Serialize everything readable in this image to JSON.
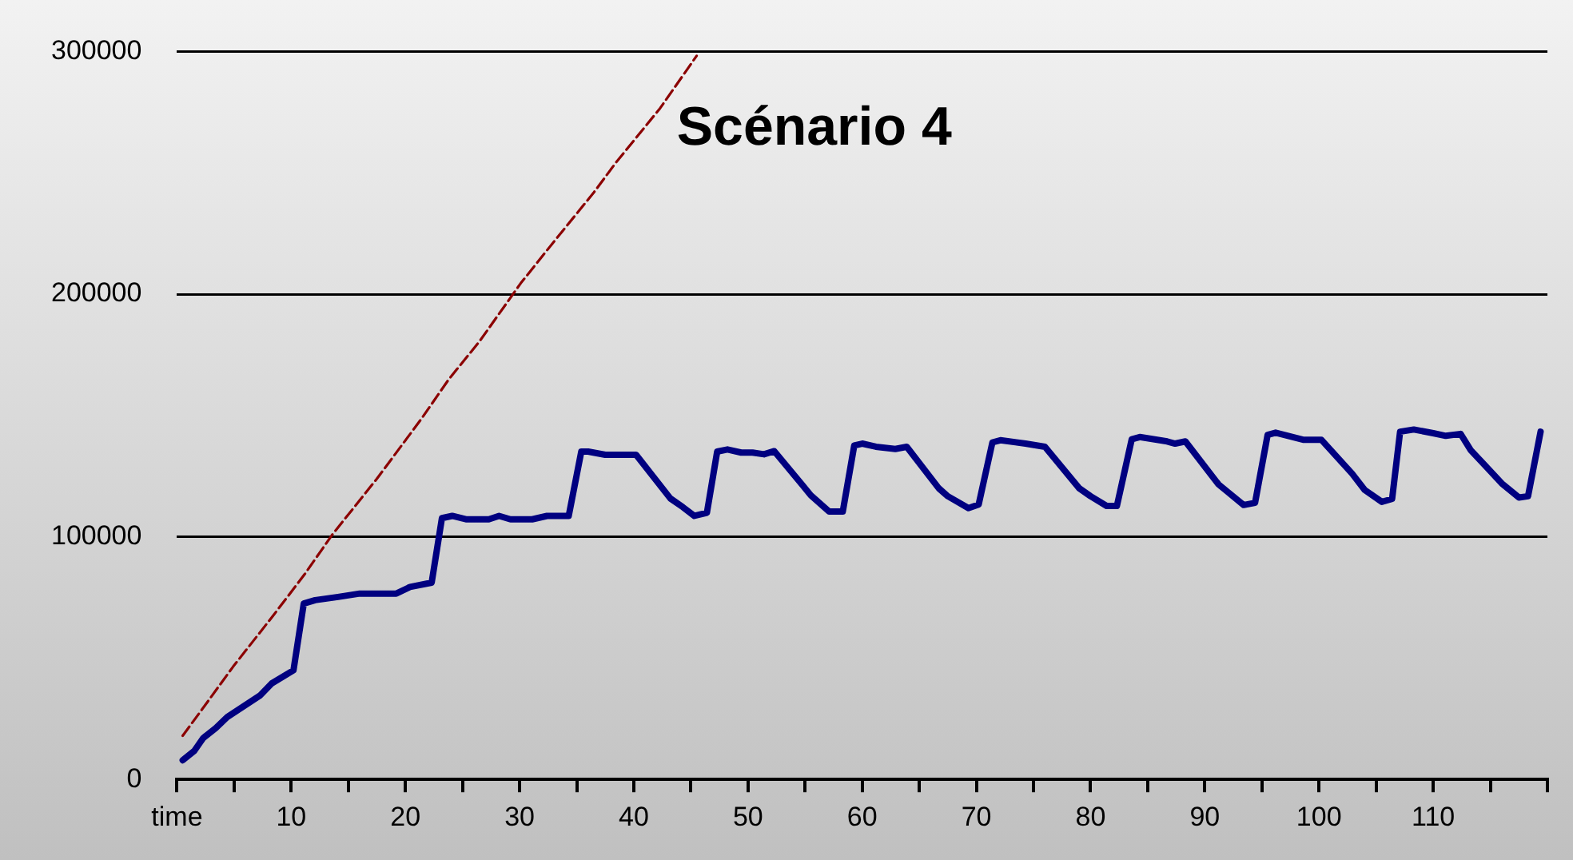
{
  "chart_data": {
    "type": "line",
    "title": "Scénario 4",
    "grid": "y",
    "marker": "none",
    "xlim": [
      0,
      120
    ],
    "xticks": [
      {
        "value": 0,
        "label": "time"
      },
      {
        "value": 5,
        "label": null
      },
      10,
      {
        "value": 15,
        "label": null
      },
      20,
      {
        "value": 25,
        "label": null
      },
      30,
      {
        "value": 35,
        "label": null
      },
      40,
      {
        "value": 45,
        "label": null
      },
      50,
      {
        "value": 55,
        "label": null
      },
      60,
      {
        "value": 65,
        "label": null
      },
      70,
      {
        "value": 75,
        "label": null
      },
      80,
      {
        "value": 85,
        "label": null
      },
      90,
      {
        "value": 95,
        "label": null
      },
      100,
      {
        "value": 105,
        "label": null
      },
      110,
      {
        "value": 115,
        "label": null
      },
      {
        "value": 120,
        "label": null
      }
    ],
    "ylim": [
      0,
      300000
    ],
    "yticks": [
      0,
      100000,
      200000,
      300000
    ],
    "series": [
      {
        "color": "#8b0000",
        "line_style": "dashed",
        "x": [
          0.5,
          2.4,
          4.9,
          8.5,
          11.2,
          13.6,
          17.5,
          21.4,
          23.8,
          26.5,
          30.1,
          33,
          36.5,
          38.4,
          42.3,
          45.5
        ],
        "values": [
          18000,
          30200,
          46400,
          68000,
          84700,
          100900,
          123900,
          148600,
          164900,
          180600,
          204500,
          221600,
          241900,
          254000,
          276600,
          298200
        ]
      },
      {
        "color": "#000080",
        "line_style": "solid",
        "x": [
          0.5,
          1.5,
          2.3,
          3.4,
          4.4,
          7.3,
          8.3,
          10.2,
          11.1,
          12.1,
          14.1,
          16,
          19.2,
          20.4,
          22.3,
          23.2,
          24.1,
          25.3,
          27.3,
          28.2,
          29.2,
          31.1,
          32.4,
          34.3,
          35.4,
          36,
          37.5,
          40.2,
          43.2,
          44.3,
          45.3,
          46.4,
          47.3,
          48.2,
          49.4,
          50.4,
          51.4,
          52.3,
          54.8,
          55.5,
          57.1,
          58.3,
          59.3,
          60,
          61.2,
          62.9,
          63.9,
          66.7,
          67.5,
          69.3,
          70.2,
          71.4,
          72.1,
          74.3,
          76,
          79,
          80,
          81.4,
          82.3,
          83.6,
          84.3,
          86.7,
          87.4,
          88.3,
          91.2,
          91.9,
          93.4,
          94.4,
          95.5,
          96.2,
          98.6,
          100.2,
          102.9,
          104,
          105.5,
          106.4,
          107.1,
          108.3,
          110,
          111.1,
          112.4,
          113.3,
          114.5,
          116,
          117.5,
          118.3,
          119.4
        ],
        "values": [
          7900,
          11700,
          17100,
          21200,
          25700,
          34700,
          39600,
          45000,
          72500,
          73900,
          75200,
          76600,
          76600,
          79300,
          81100,
          107700,
          108600,
          107200,
          107200,
          108600,
          107200,
          107200,
          108600,
          108600,
          135100,
          135100,
          133800,
          133800,
          115800,
          112200,
          108600,
          109900,
          135100,
          136000,
          134700,
          134700,
          134000,
          135300,
          121100,
          117100,
          110400,
          110400,
          137600,
          138400,
          137100,
          136200,
          137100,
          120000,
          116700,
          111800,
          113300,
          138900,
          139800,
          138400,
          137100,
          120000,
          116700,
          112700,
          112700,
          140200,
          141100,
          139300,
          138400,
          139300,
          121600,
          118900,
          113100,
          114000,
          142000,
          142900,
          140000,
          140000,
          126000,
          119300,
          114400,
          115600,
          143300,
          144200,
          142700,
          141600,
          142400,
          135600,
          129600,
          122000,
          116200,
          116700,
          143300
        ]
      }
    ]
  }
}
